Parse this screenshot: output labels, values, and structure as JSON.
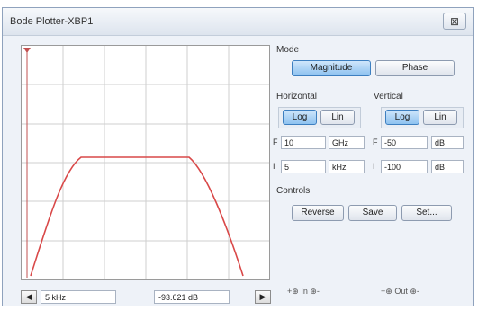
{
  "window": {
    "title": "Bode Plotter-XBP1",
    "close_label": "⊠"
  },
  "mode": {
    "label": "Mode",
    "buttons": [
      {
        "label": "Magnitude",
        "active": true
      },
      {
        "label": "Phase",
        "active": false
      }
    ]
  },
  "horizontal": {
    "label": "Horizontal",
    "log_label": "Log",
    "lin_label": "Lin",
    "final_label": "F",
    "final_value": "10",
    "final_unit": "GHz",
    "initial_label": "I",
    "initial_value": "5",
    "initial_unit": "kHz"
  },
  "vertical": {
    "label": "Vertical",
    "log_label": "Log",
    "lin_label": "Lin",
    "final_label": "F",
    "final_value": "-50",
    "final_unit": "dB",
    "initial_label": "I",
    "initial_value": "-100",
    "initial_unit": "dB"
  },
  "controls": {
    "label": "Controls",
    "reverse_label": "Reverse",
    "save_label": "Save",
    "set_label": "Set..."
  },
  "status": {
    "left_arrow": "◀",
    "right_arrow": "▶",
    "frequency_readout": "5 kHz",
    "magnitude_readout": "-93.621 dB"
  },
  "pins": {
    "in_label": "In",
    "out_label": "Out"
  },
  "plot_colors": {
    "curve": "#d94848",
    "grid": "#cfcfcf",
    "cursor": "#c25050"
  }
}
